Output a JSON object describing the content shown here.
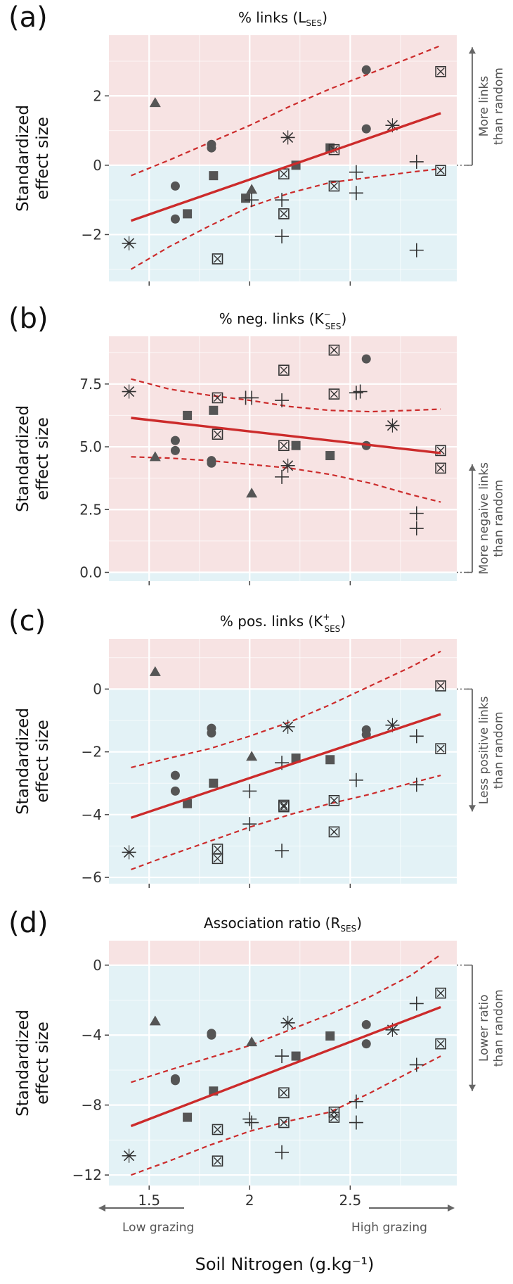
{
  "figure": {
    "xlabel": "Soil Nitrogen (g.kg⁻¹)",
    "low_grazing": "Low grazing",
    "high_grazing": "High grazing"
  },
  "colors": {
    "positive_zone": "#f7e3e3",
    "negative_zone": "#e3f2f6",
    "fit_line": "#cc2b2b",
    "points": "#555555"
  },
  "chart_data": [
    {
      "type": "scatter",
      "letter": "(a)",
      "title": "% links (L",
      "title_sub": "SES",
      "title_sup": "",
      "ylabel": [
        "Standardized",
        "effect size"
      ],
      "annotation": [
        "More links",
        "than random"
      ],
      "annotation_direction": "up",
      "annotation_span": [
        0,
        3.4
      ],
      "xlim": [
        1.3,
        3.03
      ],
      "ylim": [
        -3.35,
        3.75
      ],
      "xticks": [
        1.5,
        2,
        2.5
      ],
      "xtick_labels": [
        "",
        "",
        ""
      ],
      "yticks": [
        -2,
        0,
        2
      ],
      "ytick_labels": [
        "−2",
        "0",
        "2"
      ],
      "zero_split": 0,
      "fit": {
        "x": [
          1.41,
          2.95
        ],
        "y": [
          -1.6,
          1.5
        ]
      },
      "ci_upper": {
        "x": [
          1.41,
          1.6,
          1.8,
          2.0,
          2.2,
          2.4,
          2.6,
          2.8,
          2.95
        ],
        "y": [
          -0.3,
          0.15,
          0.65,
          1.15,
          1.7,
          2.2,
          2.65,
          3.1,
          3.45
        ]
      },
      "ci_lower": {
        "x": [
          1.41,
          1.6,
          1.8,
          2.0,
          2.2,
          2.4,
          2.6,
          2.8,
          2.95
        ],
        "y": [
          -3.0,
          -2.35,
          -1.75,
          -1.2,
          -0.8,
          -0.5,
          -0.35,
          -0.2,
          -0.1
        ]
      },
      "points": [
        {
          "s": "tri",
          "x": 1.53,
          "y": 1.8
        },
        {
          "s": "tri",
          "x": 2.01,
          "y": -0.7
        },
        {
          "s": "circ",
          "x": 1.63,
          "y": -0.6
        },
        {
          "s": "circ",
          "x": 1.63,
          "y": -1.55
        },
        {
          "s": "circ",
          "x": 1.81,
          "y": 0.6
        },
        {
          "s": "circ",
          "x": 1.81,
          "y": 0.5
        },
        {
          "s": "circ",
          "x": 2.58,
          "y": 2.75
        },
        {
          "s": "circ",
          "x": 2.58,
          "y": 1.05
        },
        {
          "s": "sq",
          "x": 1.69,
          "y": -1.4
        },
        {
          "s": "sq",
          "x": 1.82,
          "y": -0.3
        },
        {
          "s": "sq",
          "x": 1.98,
          "y": -0.95
        },
        {
          "s": "sq",
          "x": 2.23,
          "y": 0.0
        },
        {
          "s": "sq",
          "x": 2.4,
          "y": 0.5
        },
        {
          "s": "sqx",
          "x": 1.84,
          "y": -2.7
        },
        {
          "s": "sqx",
          "x": 2.17,
          "y": -0.25
        },
        {
          "s": "sqx",
          "x": 2.17,
          "y": -1.4
        },
        {
          "s": "sqx",
          "x": 2.42,
          "y": 0.45
        },
        {
          "s": "sqx",
          "x": 2.42,
          "y": -0.6
        },
        {
          "s": "sqx",
          "x": 2.95,
          "y": 2.7
        },
        {
          "s": "sqx",
          "x": 2.95,
          "y": -0.15
        },
        {
          "s": "plus",
          "x": 2.01,
          "y": -1.0
        },
        {
          "s": "plus",
          "x": 2.16,
          "y": -1.0
        },
        {
          "s": "plus",
          "x": 2.16,
          "y": -2.05
        },
        {
          "s": "plus",
          "x": 2.53,
          "y": -0.2
        },
        {
          "s": "plus",
          "x": 2.53,
          "y": -0.8
        },
        {
          "s": "plus",
          "x": 2.83,
          "y": 0.1
        },
        {
          "s": "plus",
          "x": 2.83,
          "y": -2.45
        },
        {
          "s": "ast",
          "x": 1.4,
          "y": -2.25
        },
        {
          "s": "ast",
          "x": 2.19,
          "y": 0.8
        },
        {
          "s": "ast",
          "x": 2.71,
          "y": 1.15
        }
      ]
    },
    {
      "type": "scatter",
      "letter": "(b)",
      "title": "% neg. links (K",
      "title_sub": "SES",
      "title_sup": "−",
      "ylabel": [
        "Standardized",
        "effect size"
      ],
      "annotation": [
        "More negaive links",
        "than random"
      ],
      "annotation_direction": "up",
      "annotation_span": [
        0,
        4.3
      ],
      "xlim": [
        1.3,
        3.03
      ],
      "ylim": [
        -0.35,
        9.4
      ],
      "xticks": [
        1.5,
        2,
        2.5
      ],
      "xtick_labels": [
        "",
        "",
        ""
      ],
      "yticks": [
        0,
        2.5,
        5,
        7.5
      ],
      "ytick_labels": [
        "0.0",
        "2.5",
        "5.0",
        "7.5"
      ],
      "zero_split": 0,
      "fit": {
        "x": [
          1.41,
          2.95
        ],
        "y": [
          6.15,
          4.75
        ]
      },
      "ci_upper": {
        "x": [
          1.41,
          1.6,
          1.8,
          2.0,
          2.2,
          2.4,
          2.6,
          2.8,
          2.95
        ],
        "y": [
          7.7,
          7.3,
          7.05,
          6.85,
          6.6,
          6.45,
          6.4,
          6.45,
          6.5
        ]
      },
      "ci_lower": {
        "x": [
          1.41,
          1.6,
          1.8,
          2.0,
          2.2,
          2.4,
          2.6,
          2.8,
          2.95
        ],
        "y": [
          4.6,
          4.55,
          4.45,
          4.3,
          4.15,
          3.9,
          3.55,
          3.1,
          2.8
        ]
      },
      "points": [
        {
          "s": "tri",
          "x": 1.53,
          "y": 4.6
        },
        {
          "s": "tri",
          "x": 2.01,
          "y": 3.15
        },
        {
          "s": "circ",
          "x": 1.63,
          "y": 5.25
        },
        {
          "s": "circ",
          "x": 1.63,
          "y": 4.85
        },
        {
          "s": "circ",
          "x": 1.81,
          "y": 4.45
        },
        {
          "s": "circ",
          "x": 1.81,
          "y": 4.35
        },
        {
          "s": "circ",
          "x": 2.58,
          "y": 8.5
        },
        {
          "s": "circ",
          "x": 2.58,
          "y": 5.05
        },
        {
          "s": "sq",
          "x": 1.69,
          "y": 6.25
        },
        {
          "s": "sq",
          "x": 1.82,
          "y": 6.45
        },
        {
          "s": "sq",
          "x": 2.23,
          "y": 5.05
        },
        {
          "s": "sq",
          "x": 2.4,
          "y": 4.65
        },
        {
          "s": "sqx",
          "x": 1.84,
          "y": 6.95
        },
        {
          "s": "sqx",
          "x": 1.84,
          "y": 5.5
        },
        {
          "s": "sqx",
          "x": 2.17,
          "y": 8.05
        },
        {
          "s": "sqx",
          "x": 2.17,
          "y": 5.05
        },
        {
          "s": "sqx",
          "x": 2.42,
          "y": 8.85
        },
        {
          "s": "sqx",
          "x": 2.42,
          "y": 7.1
        },
        {
          "s": "sqx",
          "x": 2.95,
          "y": 4.85
        },
        {
          "s": "sqx",
          "x": 2.95,
          "y": 4.15
        },
        {
          "s": "plus",
          "x": 1.98,
          "y": 6.95
        },
        {
          "s": "plus",
          "x": 2.01,
          "y": 6.95
        },
        {
          "s": "plus",
          "x": 2.16,
          "y": 6.85
        },
        {
          "s": "plus",
          "x": 2.16,
          "y": 3.8
        },
        {
          "s": "plus",
          "x": 2.53,
          "y": 7.15
        },
        {
          "s": "plus",
          "x": 2.55,
          "y": 7.2
        },
        {
          "s": "plus",
          "x": 2.83,
          "y": 2.35
        },
        {
          "s": "plus",
          "x": 2.83,
          "y": 1.75
        },
        {
          "s": "ast",
          "x": 1.4,
          "y": 7.2
        },
        {
          "s": "ast",
          "x": 2.19,
          "y": 4.25
        },
        {
          "s": "ast",
          "x": 2.71,
          "y": 5.85
        }
      ]
    },
    {
      "type": "scatter",
      "letter": "(c)",
      "title": "% pos. links (K",
      "title_sub": "SES",
      "title_sup": "+",
      "ylabel": [
        "Standardized",
        "effect size"
      ],
      "annotation": [
        "Less positive links",
        "than random"
      ],
      "annotation_direction": "down",
      "annotation_span": [
        0,
        -3.9
      ],
      "xlim": [
        1.3,
        3.03
      ],
      "ylim": [
        -6.2,
        1.6
      ],
      "xticks": [
        1.5,
        2,
        2.5
      ],
      "xtick_labels": [
        "",
        "",
        ""
      ],
      "yticks": [
        -6,
        -4,
        -2,
        0
      ],
      "ytick_labels": [
        "−6",
        "−4",
        "−2",
        "0"
      ],
      "zero_split": 0,
      "fit": {
        "x": [
          1.41,
          2.95
        ],
        "y": [
          -4.1,
          -0.8
        ]
      },
      "ci_upper": {
        "x": [
          1.41,
          1.6,
          1.8,
          2.0,
          2.2,
          2.4,
          2.6,
          2.8,
          2.95
        ],
        "y": [
          -2.5,
          -2.2,
          -1.9,
          -1.5,
          -1.05,
          -0.5,
          0.1,
          0.7,
          1.2
        ]
      },
      "ci_lower": {
        "x": [
          1.41,
          1.6,
          1.8,
          2.0,
          2.2,
          2.4,
          2.6,
          2.8,
          2.95
        ],
        "y": [
          -5.75,
          -5.3,
          -4.85,
          -4.4,
          -4.0,
          -3.65,
          -3.35,
          -3.0,
          -2.75
        ]
      },
      "points": [
        {
          "s": "tri",
          "x": 1.53,
          "y": 0.55
        },
        {
          "s": "tri",
          "x": 2.01,
          "y": -2.15
        },
        {
          "s": "circ",
          "x": 1.63,
          "y": -2.75
        },
        {
          "s": "circ",
          "x": 1.63,
          "y": -3.25
        },
        {
          "s": "circ",
          "x": 1.81,
          "y": -1.25
        },
        {
          "s": "circ",
          "x": 1.81,
          "y": -1.4
        },
        {
          "s": "circ",
          "x": 2.58,
          "y": -1.3
        },
        {
          "s": "circ",
          "x": 2.58,
          "y": -1.45
        },
        {
          "s": "sq",
          "x": 1.69,
          "y": -3.65
        },
        {
          "s": "sq",
          "x": 1.82,
          "y": -3.0
        },
        {
          "s": "sq",
          "x": 2.23,
          "y": -2.2
        },
        {
          "s": "sq",
          "x": 2.4,
          "y": -2.25
        },
        {
          "s": "sqx",
          "x": 1.84,
          "y": -5.1
        },
        {
          "s": "sqx",
          "x": 1.84,
          "y": -5.4
        },
        {
          "s": "sqx",
          "x": 2.17,
          "y": -3.7
        },
        {
          "s": "sqx",
          "x": 2.17,
          "y": -3.75
        },
        {
          "s": "sqx",
          "x": 2.42,
          "y": -3.55
        },
        {
          "s": "sqx",
          "x": 2.42,
          "y": -4.55
        },
        {
          "s": "sqx",
          "x": 2.95,
          "y": 0.1
        },
        {
          "s": "sqx",
          "x": 2.95,
          "y": -1.9
        },
        {
          "s": "plus",
          "x": 2.0,
          "y": -3.25
        },
        {
          "s": "plus",
          "x": 2.0,
          "y": -4.3
        },
        {
          "s": "plus",
          "x": 2.16,
          "y": -2.35
        },
        {
          "s": "plus",
          "x": 2.16,
          "y": -5.15
        },
        {
          "s": "plus",
          "x": 2.53,
          "y": -2.9
        },
        {
          "s": "plus",
          "x": 2.83,
          "y": -1.5
        },
        {
          "s": "plus",
          "x": 2.83,
          "y": -3.05
        },
        {
          "s": "ast",
          "x": 1.4,
          "y": -5.2
        },
        {
          "s": "ast",
          "x": 2.19,
          "y": -1.2
        },
        {
          "s": "ast",
          "x": 2.71,
          "y": -1.15
        }
      ]
    },
    {
      "type": "scatter",
      "letter": "(d)",
      "title": "Association ratio (R",
      "title_sub": "SES",
      "title_sup": "",
      "ylabel": [
        "Standardized",
        "effect size"
      ],
      "annotation": [
        "Lower ratio",
        "than random"
      ],
      "annotation_direction": "down",
      "annotation_span": [
        0,
        -7.2
      ],
      "xlim": [
        1.3,
        3.03
      ],
      "ylim": [
        -12.6,
        1.4
      ],
      "xticks": [
        1.5,
        2,
        2.5
      ],
      "xtick_labels": [
        "1.5",
        "2",
        "2.5"
      ],
      "yticks": [
        -12,
        -8,
        -4,
        0
      ],
      "ytick_labels": [
        "−12",
        "−8",
        "−4",
        "0"
      ],
      "zero_split": 0,
      "fit": {
        "x": [
          1.41,
          2.95
        ],
        "y": [
          -9.2,
          -2.4
        ]
      },
      "ci_upper": {
        "x": [
          1.41,
          1.6,
          1.8,
          2.0,
          2.2,
          2.4,
          2.6,
          2.8,
          2.95
        ],
        "y": [
          -6.7,
          -6.0,
          -5.3,
          -4.6,
          -3.7,
          -2.8,
          -1.8,
          -0.6,
          0.6
        ]
      },
      "ci_lower": {
        "x": [
          1.41,
          1.6,
          1.8,
          2.0,
          2.2,
          2.4,
          2.6,
          2.8,
          2.95
        ],
        "y": [
          -12.0,
          -11.2,
          -10.3,
          -9.5,
          -8.9,
          -8.4,
          -7.3,
          -6.1,
          -5.2
        ]
      },
      "points": [
        {
          "s": "tri",
          "x": 1.53,
          "y": -3.2
        },
        {
          "s": "tri",
          "x": 2.01,
          "y": -4.4
        },
        {
          "s": "circ",
          "x": 1.63,
          "y": -6.5
        },
        {
          "s": "circ",
          "x": 1.63,
          "y": -6.6
        },
        {
          "s": "circ",
          "x": 1.81,
          "y": -3.9
        },
        {
          "s": "circ",
          "x": 1.81,
          "y": -4.0
        },
        {
          "s": "circ",
          "x": 2.58,
          "y": -3.4
        },
        {
          "s": "circ",
          "x": 2.58,
          "y": -4.5
        },
        {
          "s": "sq",
          "x": 1.69,
          "y": -8.7
        },
        {
          "s": "sq",
          "x": 1.82,
          "y": -7.2
        },
        {
          "s": "sq",
          "x": 2.23,
          "y": -5.2
        },
        {
          "s": "sq",
          "x": 2.4,
          "y": -4.05
        },
        {
          "s": "sqx",
          "x": 1.84,
          "y": -9.4
        },
        {
          "s": "sqx",
          "x": 1.84,
          "y": -11.2
        },
        {
          "s": "sqx",
          "x": 2.17,
          "y": -7.3
        },
        {
          "s": "sqx",
          "x": 2.17,
          "y": -9.0
        },
        {
          "s": "sqx",
          "x": 2.42,
          "y": -8.4
        },
        {
          "s": "sqx",
          "x": 2.42,
          "y": -8.7
        },
        {
          "s": "sqx",
          "x": 2.95,
          "y": -1.6
        },
        {
          "s": "sqx",
          "x": 2.95,
          "y": -4.5
        },
        {
          "s": "plus",
          "x": 2.0,
          "y": -8.8
        },
        {
          "s": "plus",
          "x": 2.01,
          "y": -9.0
        },
        {
          "s": "plus",
          "x": 2.16,
          "y": -5.2
        },
        {
          "s": "plus",
          "x": 2.16,
          "y": -10.7
        },
        {
          "s": "plus",
          "x": 2.53,
          "y": -7.8
        },
        {
          "s": "plus",
          "x": 2.53,
          "y": -9.0
        },
        {
          "s": "plus",
          "x": 2.83,
          "y": -2.2
        },
        {
          "s": "plus",
          "x": 2.83,
          "y": -5.7
        },
        {
          "s": "ast",
          "x": 1.4,
          "y": -10.9
        },
        {
          "s": "ast",
          "x": 2.19,
          "y": -3.3
        },
        {
          "s": "ast",
          "x": 2.71,
          "y": -3.7
        }
      ]
    }
  ]
}
